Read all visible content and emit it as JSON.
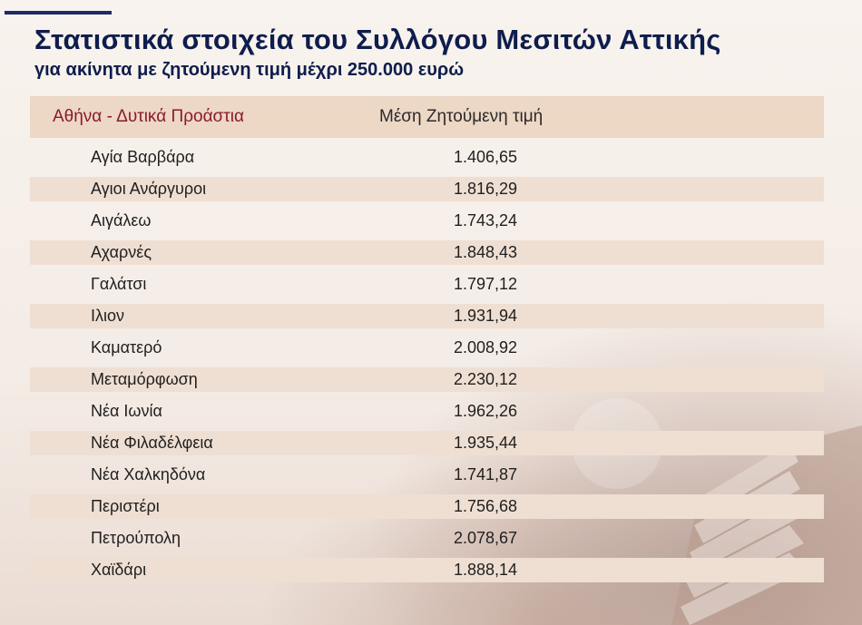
{
  "header": {
    "title": "Στατιστικά στοιχεία του Συλλόγου Μεσιτών Αττικής",
    "subtitle": "για ακίνητα με ζητούμενη τιμή  μέχρι 250.000 ευρώ"
  },
  "table": {
    "columns": [
      "Αθήνα - Δυτικά Προάστια",
      "Μέση Ζητούμενη τιμή"
    ],
    "rows": [
      {
        "area": "Αγία Βαρβάρα",
        "price": "1.406,65"
      },
      {
        "area": "Αγιοι Ανάργυροι",
        "price": "1.816,29"
      },
      {
        "area": "Αιγάλεω",
        "price": "1.743,24"
      },
      {
        "area": "Αχαρνές",
        "price": "1.848,43"
      },
      {
        "area": "Γαλάτσι",
        "price": "1.797,12"
      },
      {
        "area": "Ιλιον",
        "price": "1.931,94"
      },
      {
        "area": "Καματερό",
        "price": "2.008,92"
      },
      {
        "area": "Μεταμόρφωση",
        "price": "2.230,12"
      },
      {
        "area": "Νέα Ιωνία",
        "price": "1.962,26"
      },
      {
        "area": "Νέα Φιλαδέλφεια",
        "price": "1.935,44"
      },
      {
        "area": "Νέα Χαλκηδόνα",
        "price": "1.741,87"
      },
      {
        "area": "Περιστέρι",
        "price": "1.756,68"
      },
      {
        "area": "Πετρούπολη",
        "price": "2.078,67"
      },
      {
        "area": "Χαϊδάρι",
        "price": "1.888,14"
      }
    ]
  },
  "colors": {
    "title": "#0f1d4d",
    "header_area": "#8b1a2b",
    "header_bg": "#edd7c5",
    "row_shade": "#efdfd3"
  }
}
